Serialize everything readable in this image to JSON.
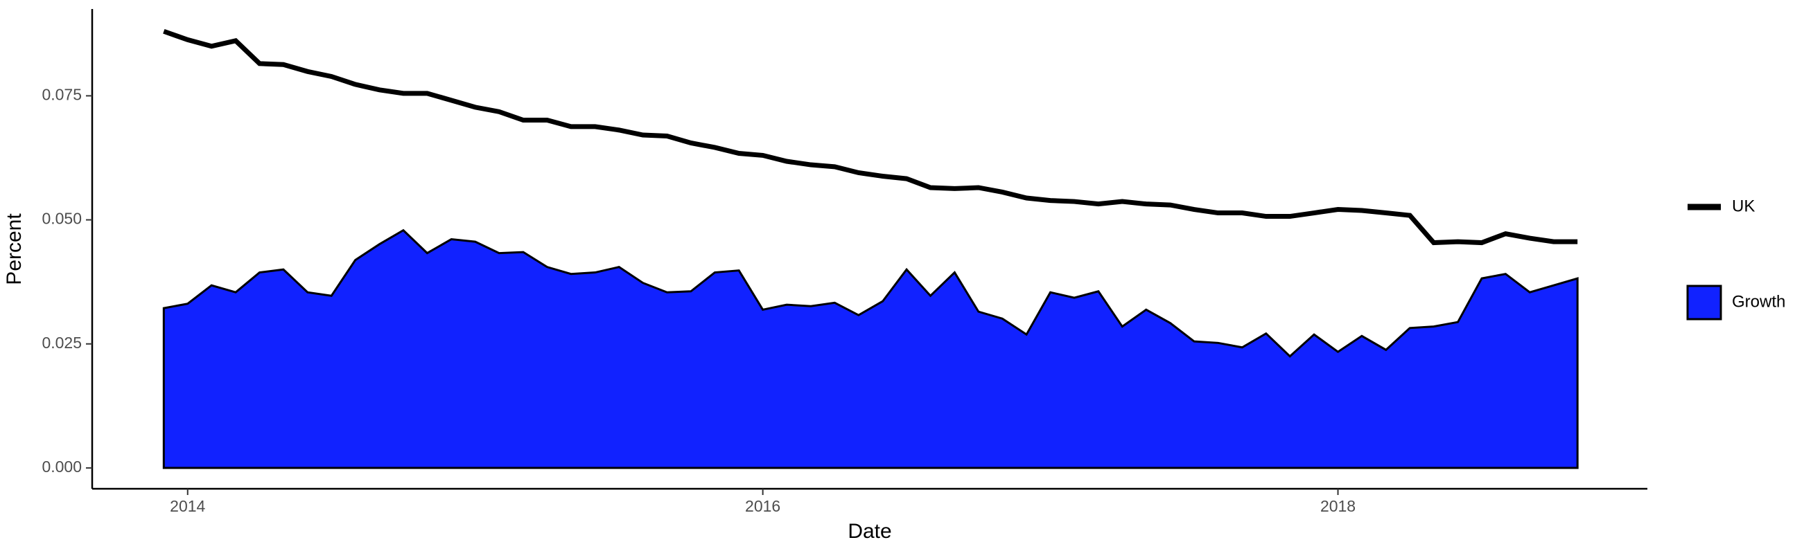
{
  "chart_data": {
    "type": "line",
    "x_label": "Date",
    "y_label": "Percent",
    "x": [
      2013.917,
      2014.0,
      2014.083,
      2014.167,
      2014.25,
      2014.333,
      2014.417,
      2014.5,
      2014.583,
      2014.667,
      2014.75,
      2014.833,
      2014.917,
      2015.0,
      2015.083,
      2015.167,
      2015.25,
      2015.333,
      2015.417,
      2015.5,
      2015.583,
      2015.667,
      2015.75,
      2015.833,
      2015.917,
      2016.0,
      2016.083,
      2016.167,
      2016.25,
      2016.333,
      2016.417,
      2016.5,
      2016.583,
      2016.667,
      2016.75,
      2016.833,
      2016.917,
      2017.0,
      2017.083,
      2017.167,
      2017.25,
      2017.333,
      2017.417,
      2017.5,
      2017.583,
      2017.667,
      2017.75,
      2017.833,
      2017.917,
      2018.0,
      2018.083,
      2018.167,
      2018.25,
      2018.333,
      2018.417,
      2018.5,
      2018.583,
      2018.667,
      2018.75,
      2018.833
    ],
    "series": [
      {
        "name": "UK",
        "type": "line",
        "color": "#000000",
        "values": [
          0.088,
          0.0863,
          0.085,
          0.0861,
          0.0815,
          0.0813,
          0.0799,
          0.0789,
          0.0773,
          0.0762,
          0.0755,
          0.0755,
          0.0741,
          0.0727,
          0.0718,
          0.0701,
          0.0701,
          0.0688,
          0.0688,
          0.0681,
          0.0671,
          0.0669,
          0.0655,
          0.0646,
          0.0634,
          0.063,
          0.0618,
          0.0611,
          0.0607,
          0.0595,
          0.0588,
          0.0583,
          0.0565,
          0.0563,
          0.0565,
          0.0556,
          0.0544,
          0.0539,
          0.0537,
          0.0532,
          0.0537,
          0.0532,
          0.053,
          0.0521,
          0.0514,
          0.0514,
          0.0507,
          0.0507,
          0.0514,
          0.0521,
          0.0519,
          0.0514,
          0.0509,
          0.0454,
          0.0456,
          0.0454,
          0.0472,
          0.0463,
          0.0456,
          0.0456
        ]
      },
      {
        "name": "Growth",
        "type": "area",
        "color": "#1122ff",
        "values": [
          0.0322,
          0.0331,
          0.0368,
          0.0354,
          0.0394,
          0.04,
          0.0354,
          0.0347,
          0.0419,
          0.0451,
          0.0479,
          0.0433,
          0.0461,
          0.0456,
          0.0433,
          0.0435,
          0.0405,
          0.0391,
          0.0394,
          0.0405,
          0.0373,
          0.0354,
          0.0356,
          0.0394,
          0.0398,
          0.0319,
          0.0329,
          0.0326,
          0.0333,
          0.0308,
          0.0336,
          0.04,
          0.0347,
          0.0394,
          0.0315,
          0.0301,
          0.0269,
          0.0354,
          0.0343,
          0.0356,
          0.0285,
          0.0319,
          0.0292,
          0.0255,
          0.0252,
          0.0243,
          0.0271,
          0.0225,
          0.0269,
          0.0234,
          0.0266,
          0.0238,
          0.0282,
          0.0285,
          0.0294,
          0.0382,
          0.0391,
          0.0354,
          0.0368,
          0.0382
        ]
      }
    ],
    "xlim": [
      2013.668,
      2019.076
    ],
    "xticks": [
      2014,
      2016,
      2018
    ],
    "ylim": [
      -0.0042,
      0.0925
    ],
    "yticks": [
      {
        "value": 0,
        "label": "0.000"
      },
      {
        "value": 0.025,
        "label": "0.025"
      },
      {
        "value": 0.05,
        "label": "0.050"
      },
      {
        "value": 0.075,
        "label": "0.075"
      }
    ],
    "grid": false,
    "legend": "right"
  }
}
